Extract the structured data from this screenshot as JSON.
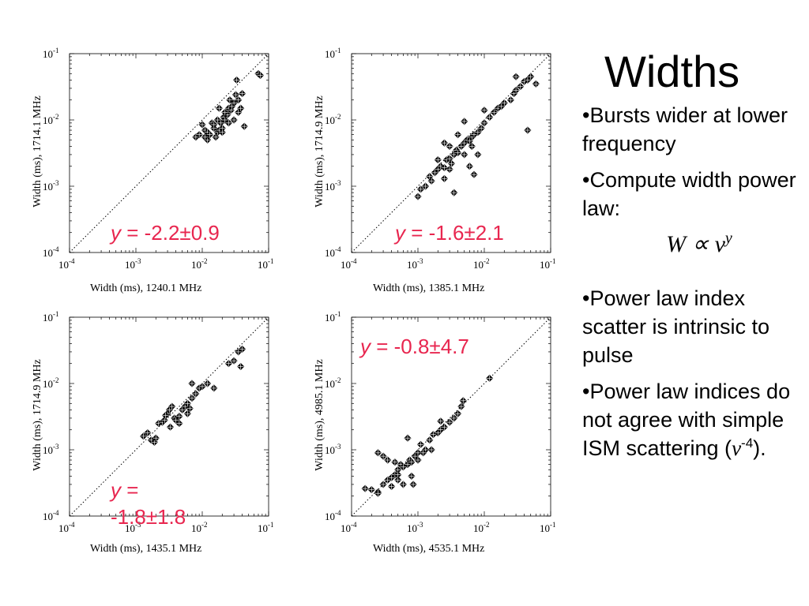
{
  "slide": {
    "title": "Widths",
    "bullets": [
      "•Bursts wider at lower frequency",
      "•Compute width power law:",
      "•Power law index scatter is intrinsic to pulse",
      "•Power law indices do not agree with simple ISM scattering ("
    ],
    "formula": {
      "lhs": "W ∝ ν",
      "exponent": "y"
    },
    "last_bullet_suffix": {
      "nu": "ν",
      "exponent": "-4",
      "closing": ")."
    }
  },
  "chart_data": [
    {
      "type": "scatter",
      "scale": "log",
      "xlabel": "Width (ms), 1240.1 MHz",
      "ylabel": "Width (ms), 1714.1 MHz",
      "xlim": [
        0.0001,
        0.1
      ],
      "ylim": [
        0.0001,
        0.1
      ],
      "x_ticks": [
        "10-4",
        "10-3",
        "10-2",
        "10-1"
      ],
      "y_ticks": [
        "10-4",
        "10-3",
        "10-2",
        "10-1"
      ],
      "fit_label": {
        "var": "y",
        "text": " = -2.2±0.9"
      },
      "diagonal": true,
      "points": [
        [
          0.008,
          0.0055
        ],
        [
          0.009,
          0.006
        ],
        [
          0.011,
          0.007
        ],
        [
          0.01,
          0.0085
        ],
        [
          0.012,
          0.0065
        ],
        [
          0.013,
          0.006
        ],
        [
          0.015,
          0.0075
        ],
        [
          0.016,
          0.0055
        ],
        [
          0.017,
          0.0065
        ],
        [
          0.018,
          0.007
        ],
        [
          0.02,
          0.0075
        ],
        [
          0.019,
          0.009
        ],
        [
          0.021,
          0.011
        ],
        [
          0.022,
          0.01
        ],
        [
          0.023,
          0.012
        ],
        [
          0.025,
          0.015
        ],
        [
          0.027,
          0.014
        ],
        [
          0.03,
          0.018
        ],
        [
          0.028,
          0.016
        ],
        [
          0.035,
          0.02
        ],
        [
          0.04,
          0.025
        ],
        [
          0.038,
          0.015
        ],
        [
          0.043,
          0.008
        ],
        [
          0.033,
          0.04
        ],
        [
          0.035,
          0.013
        ],
        [
          0.017,
          0.01
        ],
        [
          0.014,
          0.009
        ],
        [
          0.012,
          0.005
        ],
        [
          0.026,
          0.02
        ],
        [
          0.03,
          0.01
        ],
        [
          0.024,
          0.012
        ],
        [
          0.02,
          0.0065
        ],
        [
          0.015,
          0.0085
        ],
        [
          0.011,
          0.0055
        ],
        [
          0.07,
          0.05
        ],
        [
          0.075,
          0.047
        ],
        [
          0.022,
          0.013
        ],
        [
          0.018,
          0.015
        ],
        [
          0.032,
          0.024
        ],
        [
          0.025,
          0.009
        ]
      ]
    },
    {
      "type": "scatter",
      "scale": "log",
      "xlabel": "Width (ms), 1385.1 MHz",
      "ylabel": "Width (ms), 1714.9 MHz",
      "xlim": [
        0.0001,
        0.1
      ],
      "ylim": [
        0.0001,
        0.1
      ],
      "x_ticks": [
        "10-4",
        "10-3",
        "10-2",
        "10-1"
      ],
      "y_ticks": [
        "10-4",
        "10-3",
        "10-2",
        "10-1"
      ],
      "fit_label": {
        "var": "y",
        "text": " = -1.6±2.1"
      },
      "diagonal": true,
      "points": [
        [
          0.001,
          0.0007
        ],
        [
          0.0011,
          0.0009
        ],
        [
          0.0013,
          0.001
        ],
        [
          0.0015,
          0.0014
        ],
        [
          0.0016,
          0.0012
        ],
        [
          0.0018,
          0.0016
        ],
        [
          0.002,
          0.0018
        ],
        [
          0.0022,
          0.002
        ],
        [
          0.0025,
          0.0019
        ],
        [
          0.0027,
          0.0025
        ],
        [
          0.003,
          0.0026
        ],
        [
          0.0032,
          0.0022
        ],
        [
          0.0035,
          0.003
        ],
        [
          0.0038,
          0.0035
        ],
        [
          0.004,
          0.0032
        ],
        [
          0.0045,
          0.004
        ],
        [
          0.005,
          0.0045
        ],
        [
          0.0055,
          0.005
        ],
        [
          0.006,
          0.0048
        ],
        [
          0.0065,
          0.0055
        ],
        [
          0.007,
          0.006
        ],
        [
          0.008,
          0.0065
        ],
        [
          0.009,
          0.0075
        ],
        [
          0.01,
          0.009
        ],
        [
          0.012,
          0.011
        ],
        [
          0.014,
          0.013
        ],
        [
          0.016,
          0.015
        ],
        [
          0.018,
          0.016
        ],
        [
          0.02,
          0.018
        ],
        [
          0.025,
          0.02
        ],
        [
          0.028,
          0.025
        ],
        [
          0.03,
          0.028
        ],
        [
          0.035,
          0.032
        ],
        [
          0.04,
          0.038
        ],
        [
          0.045,
          0.04
        ],
        [
          0.05,
          0.045
        ],
        [
          0.06,
          0.035
        ],
        [
          0.045,
          0.007
        ],
        [
          0.0035,
          0.0008
        ],
        [
          0.0025,
          0.0013
        ],
        [
          0.003,
          0.0018
        ],
        [
          0.006,
          0.002
        ],
        [
          0.007,
          0.0015
        ],
        [
          0.005,
          0.003
        ],
        [
          0.004,
          0.006
        ],
        [
          0.0025,
          0.0045
        ],
        [
          0.002,
          0.0025
        ],
        [
          0.003,
          0.004
        ],
        [
          0.0065,
          0.004
        ],
        [
          0.008,
          0.003
        ],
        [
          0.01,
          0.014
        ],
        [
          0.005,
          0.0095
        ],
        [
          0.03,
          0.045
        ]
      ]
    },
    {
      "type": "scatter",
      "scale": "log",
      "xlabel": "Width (ms), 1435.1 MHz",
      "ylabel": "Width (ms), 1714.9 MHz",
      "xlim": [
        0.0001,
        0.1
      ],
      "ylim": [
        0.0001,
        0.1
      ],
      "x_ticks": [
        "10-4",
        "10-3",
        "10-2",
        "10-1"
      ],
      "y_ticks": [
        "10-4",
        "10-3",
        "10-2",
        "10-1"
      ],
      "fit_label": {
        "var": "y",
        "text": " = -1.8±1.8"
      },
      "diagonal": true,
      "points": [
        [
          0.0013,
          0.0016
        ],
        [
          0.0015,
          0.0018
        ],
        [
          0.0017,
          0.0014
        ],
        [
          0.0019,
          0.0013
        ],
        [
          0.002,
          0.0015
        ],
        [
          0.0022,
          0.0025
        ],
        [
          0.0025,
          0.0026
        ],
        [
          0.0027,
          0.0028
        ],
        [
          0.003,
          0.0035
        ],
        [
          0.0032,
          0.004
        ],
        [
          0.0035,
          0.0045
        ],
        [
          0.0038,
          0.003
        ],
        [
          0.004,
          0.0028
        ],
        [
          0.0045,
          0.0032
        ],
        [
          0.005,
          0.004
        ],
        [
          0.0055,
          0.0045
        ],
        [
          0.006,
          0.005
        ],
        [
          0.007,
          0.006
        ],
        [
          0.008,
          0.007
        ],
        [
          0.009,
          0.0085
        ],
        [
          0.01,
          0.009
        ],
        [
          0.012,
          0.01
        ],
        [
          0.015,
          0.0085
        ],
        [
          0.007,
          0.01
        ],
        [
          0.006,
          0.0035
        ],
        [
          0.0045,
          0.0025
        ],
        [
          0.035,
          0.03
        ],
        [
          0.03,
          0.022
        ],
        [
          0.038,
          0.018
        ],
        [
          0.04,
          0.033
        ],
        [
          0.025,
          0.02
        ],
        [
          0.0033,
          0.0022
        ],
        [
          0.0028,
          0.0033
        ],
        [
          0.0065,
          0.0042
        ]
      ]
    },
    {
      "type": "scatter",
      "scale": "log",
      "xlabel": "Width (ms), 4535.1 MHz",
      "ylabel": "Width (ms), 4985.1 MHz",
      "xlim": [
        0.0001,
        0.1
      ],
      "ylim": [
        0.0001,
        0.1
      ],
      "x_ticks": [
        "10-4",
        "10-3",
        "10-2",
        "10-1"
      ],
      "y_ticks": [
        "10-4",
        "10-3",
        "10-2",
        "10-1"
      ],
      "fit_label": {
        "var": "y",
        "text": " = -0.8±4.7"
      },
      "diagonal": true,
      "points": [
        [
          0.00016,
          0.00026
        ],
        [
          0.0002,
          0.00025
        ],
        [
          0.00025,
          0.00023
        ],
        [
          0.0003,
          0.0003
        ],
        [
          0.00035,
          0.00035
        ],
        [
          0.0004,
          0.00038
        ],
        [
          0.00045,
          0.00042
        ],
        [
          0.0005,
          0.0005
        ],
        [
          0.00055,
          0.0006
        ],
        [
          0.0006,
          0.00055
        ],
        [
          0.0007,
          0.0006
        ],
        [
          0.00075,
          0.0007
        ],
        [
          0.0008,
          0.00065
        ],
        [
          0.0009,
          0.0008
        ],
        [
          0.001,
          0.0009
        ],
        [
          0.0011,
          0.0012
        ],
        [
          0.0013,
          0.001
        ],
        [
          0.0015,
          0.0014
        ],
        [
          0.0017,
          0.0017
        ],
        [
          0.002,
          0.0018
        ],
        [
          0.0022,
          0.002
        ],
        [
          0.0025,
          0.0022
        ],
        [
          0.003,
          0.0026
        ],
        [
          0.0035,
          0.003
        ],
        [
          0.004,
          0.0035
        ],
        [
          0.0045,
          0.0045
        ],
        [
          0.0048,
          0.0055
        ],
        [
          0.012,
          0.012
        ],
        [
          0.00025,
          0.0009
        ],
        [
          0.0003,
          0.0008
        ],
        [
          0.0004,
          0.00028
        ],
        [
          0.0005,
          0.00035
        ],
        [
          0.0006,
          0.0003
        ],
        [
          0.00085,
          0.0003
        ],
        [
          0.00045,
          0.00065
        ],
        [
          0.00035,
          0.0007
        ],
        [
          0.0007,
          0.0015
        ],
        [
          0.001,
          0.0007
        ],
        [
          0.0012,
          0.0009
        ],
        [
          0.0016,
          0.001
        ],
        [
          0.00025,
          0.00022
        ],
        [
          0.0005,
          0.00042
        ],
        [
          0.0022,
          0.0027
        ],
        [
          0.0008,
          0.0004
        ]
      ]
    }
  ]
}
